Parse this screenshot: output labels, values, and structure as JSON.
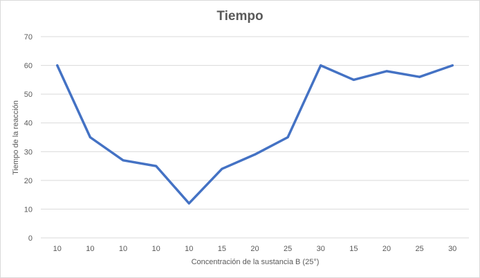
{
  "chart_data": {
    "type": "line",
    "title": "Tiempo",
    "xlabel": "Concentración de la sustancia B (25°)",
    "ylabel": "Tiempo de la reacción",
    "categories": [
      "10",
      "10",
      "10",
      "10",
      "10",
      "15",
      "20",
      "25",
      "30",
      "15",
      "20",
      "25",
      "30"
    ],
    "series": [
      {
        "values": [
          60,
          35,
          27,
          25,
          12,
          24,
          29,
          35,
          60,
          55,
          58,
          56,
          60
        ],
        "color": "#4472C4"
      }
    ],
    "ylim": [
      0,
      70
    ],
    "yticks": [
      "0",
      "10",
      "20",
      "30",
      "40",
      "50",
      "60",
      "70"
    ],
    "grid": true,
    "legend": "none"
  }
}
